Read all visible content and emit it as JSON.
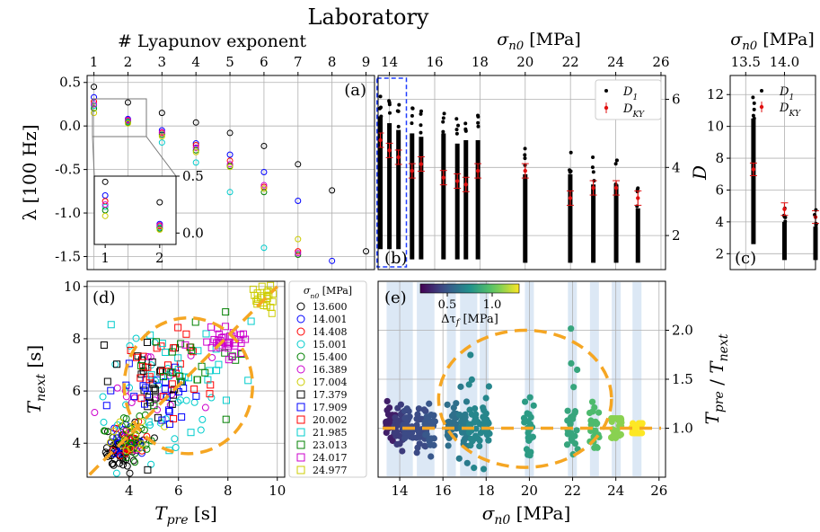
{
  "figure": {
    "title": "Laboratory"
  },
  "chart_data": [
    {
      "id": "a",
      "type": "scatter",
      "panel_label": "(a)",
      "top_axis_label": "# Lyapunov exponent",
      "xlabel": "",
      "ylabel": "λ [100 Hz]",
      "xlim": [
        0.8,
        9.25
      ],
      "ylim": [
        -1.65,
        0.58
      ],
      "xticks": [
        "1",
        "2",
        "3",
        "4",
        "5",
        "6",
        "7",
        "8",
        "9"
      ],
      "yticks": [
        "0.5",
        "0.0",
        "-0.5",
        "-1.0",
        "-1.5"
      ],
      "series": [
        {
          "color": "#000000",
          "x": [
            1,
            2,
            3,
            4,
            5,
            6,
            7,
            8,
            9
          ],
          "y": [
            0.45,
            0.27,
            0.15,
            0.04,
            -0.08,
            -0.23,
            -0.44,
            -0.74,
            -1.44
          ]
        },
        {
          "color": "#0000ff",
          "x": [
            1,
            2,
            3,
            4,
            5,
            6,
            7,
            8
          ],
          "y": [
            0.33,
            0.08,
            -0.05,
            -0.2,
            -0.33,
            -0.53,
            -0.86,
            -1.55
          ]
        },
        {
          "color": "#ff0000",
          "x": [
            1,
            2,
            3,
            4,
            5,
            6,
            7
          ],
          "y": [
            0.28,
            0.06,
            -0.08,
            -0.22,
            -0.4,
            -0.7,
            -1.44
          ]
        },
        {
          "color": "#00cccc",
          "x": [
            1,
            2,
            3,
            4,
            5,
            6
          ],
          "y": [
            0.23,
            0.05,
            -0.19,
            -0.42,
            -0.76,
            -1.4
          ]
        },
        {
          "color": "#008000",
          "x": [
            1,
            2,
            3,
            4,
            5,
            6,
            7
          ],
          "y": [
            0.2,
            0.04,
            -0.1,
            -0.28,
            -0.46,
            -0.76,
            -1.48
          ]
        },
        {
          "color": "#cc00cc",
          "x": [
            1,
            2,
            3,
            4,
            5,
            6,
            7
          ],
          "y": [
            0.25,
            0.07,
            -0.07,
            -0.25,
            -0.44,
            -0.68,
            -1.46
          ]
        },
        {
          "color": "#cccc00",
          "x": [
            1,
            2,
            3,
            4,
            5,
            6,
            7
          ],
          "y": [
            0.15,
            0.03,
            -0.12,
            -0.3,
            -0.47,
            -0.72,
            -1.3
          ]
        }
      ],
      "inset": {
        "xlim": [
          0.8,
          2.3
        ],
        "ylim": [
          -0.1,
          0.5
        ],
        "xticks": [
          "1",
          "2"
        ],
        "yticks": [
          "0.5",
          "0.0"
        ]
      }
    },
    {
      "id": "b",
      "type": "scatter",
      "panel_label": "(b)",
      "top_axis_label": "σn0 [MPa]",
      "ylabel": "D",
      "xlim": [
        13.5,
        26.2
      ],
      "ylim": [
        1.0,
        6.7
      ],
      "xticks": [
        "14",
        "16",
        "18",
        "20",
        "22",
        "24",
        "26"
      ],
      "yticks": [
        "2",
        "4",
        "6"
      ],
      "legend": [
        "D1",
        "DKY"
      ],
      "columns_x": [
        13.6,
        14.0,
        14.4,
        15.0,
        15.4,
        16.39,
        17.0,
        17.38,
        17.91,
        20.0,
        21.99,
        23.01,
        24.02,
        24.98
      ],
      "d1_range": [
        [
          1.6,
          6.3
        ],
        [
          1.6,
          6.1
        ],
        [
          1.6,
          5.9
        ],
        [
          1.3,
          5.8
        ],
        [
          1.3,
          5.7
        ],
        [
          1.3,
          5.8
        ],
        [
          1.3,
          5.5
        ],
        [
          1.3,
          5.6
        ],
        [
          1.3,
          5.6
        ],
        [
          1.2,
          4.6
        ],
        [
          1.2,
          4.6
        ],
        [
          1.2,
          4.3
        ],
        [
          1.2,
          4.3
        ],
        [
          1.2,
          3.6
        ]
      ],
      "dky": [
        4.8,
        4.5,
        4.3,
        3.9,
        4.1,
        3.7,
        3.6,
        3.5,
        3.9,
        3.9,
        3.1,
        3.4,
        3.4,
        3.1
      ],
      "highlight": {
        "x": [
          13.45,
          14.75
        ]
      }
    },
    {
      "id": "c",
      "type": "scatter",
      "panel_label": "(c)",
      "top_axis_label": "σn0 [MPa]",
      "xlim": [
        13.3,
        14.4
      ],
      "ylim": [
        1.0,
        13.2
      ],
      "xticks": [
        "13.5",
        "14.0"
      ],
      "yticks": [
        "2",
        "4",
        "6",
        "8",
        "10",
        "12"
      ],
      "legend": [
        "D1",
        "DKY"
      ],
      "columns_x": [
        13.6,
        14.0,
        14.4
      ],
      "d1_range": [
        [
          2.6,
          12
        ],
        [
          1.6,
          5.5
        ],
        [
          1.6,
          5.2
        ]
      ],
      "dky": [
        7.3,
        4.8,
        4.3
      ]
    },
    {
      "id": "d",
      "type": "scatter",
      "panel_label": "(d)",
      "xlabel": "T_pre [s]",
      "ylabel": "T_next [s]",
      "xlim": [
        2.3,
        10.3
      ],
      "ylim": [
        2.7,
        10.2
      ],
      "xticks": [
        "4",
        "6",
        "8",
        "10"
      ],
      "yticks": [
        "4",
        "6",
        "8",
        "10"
      ],
      "legend_title": "σn0 [MPa]",
      "legend": [
        "13.600",
        "14.001",
        "14.408",
        "15.001",
        "15.400",
        "16.389",
        "17.004",
        "17.379",
        "17.909",
        "20.002",
        "21.985",
        "23.013",
        "24.017",
        "24.977"
      ],
      "legend_colors": [
        "#000000",
        "#0000ff",
        "#ff0000",
        "#00cccc",
        "#008000",
        "#cc00cc",
        "#cccc00",
        "#000000",
        "#0000ff",
        "#ff0000",
        "#00cccc",
        "#008000",
        "#cc00cc",
        "#cccc00"
      ],
      "clusters": [
        {
          "series": 0,
          "cx": 3.7,
          "cy": 3.7,
          "sx": 0.4,
          "sy": 0.45,
          "n": 55
        },
        {
          "series": 1,
          "cx": 3.8,
          "cy": 3.9,
          "sx": 0.35,
          "sy": 0.35,
          "n": 25
        },
        {
          "series": 2,
          "cx": 4.0,
          "cy": 4.1,
          "sx": 0.4,
          "sy": 0.4,
          "n": 25
        },
        {
          "series": 3,
          "cx": 5.0,
          "cy": 6.0,
          "sx": 1.3,
          "sy": 1.4,
          "n": 30
        },
        {
          "series": 4,
          "cx": 4.1,
          "cy": 4.3,
          "sx": 0.45,
          "sy": 0.45,
          "n": 30
        },
        {
          "series": 5,
          "cx": 5.4,
          "cy": 5.9,
          "sx": 0.8,
          "sy": 0.8,
          "n": 20
        },
        {
          "series": 6,
          "cx": 4.2,
          "cy": 4.3,
          "sx": 0.4,
          "sy": 0.4,
          "n": 15
        },
        {
          "series": 7,
          "cx": 4.8,
          "cy": 6.4,
          "sx": 0.8,
          "sy": 0.8,
          "n": 28
        },
        {
          "series": 8,
          "cx": 5.2,
          "cy": 6.2,
          "sx": 0.8,
          "sy": 0.7,
          "n": 24
        },
        {
          "series": 9,
          "cx": 5.5,
          "cy": 6.7,
          "sx": 0.9,
          "sy": 0.9,
          "n": 26
        },
        {
          "series": 10,
          "cx": 6.5,
          "cy": 7.0,
          "sx": 1.4,
          "sy": 1.5,
          "n": 24
        },
        {
          "series": 11,
          "cx": 6.3,
          "cy": 7.3,
          "sx": 1.0,
          "sy": 1.0,
          "n": 22
        },
        {
          "series": 12,
          "cx": 7.9,
          "cy": 7.9,
          "sx": 0.4,
          "sy": 0.4,
          "n": 35
        },
        {
          "series": 13,
          "cx": 9.4,
          "cy": 9.5,
          "sx": 0.4,
          "sy": 0.3,
          "n": 22
        }
      ],
      "guides": {
        "circle": {
          "cx": 6.4,
          "cy": 6.2,
          "r": 2.6
        },
        "line": [
          [
            2.4,
            2.8
          ],
          [
            10.0,
            10.0
          ]
        ]
      }
    },
    {
      "id": "e",
      "type": "scatter",
      "panel_label": "(e)",
      "xlabel": "σn0 [MPa]",
      "ylabel": "T_pre / T_next",
      "xlim": [
        13.0,
        26.3
      ],
      "ylim": [
        0.5,
        2.5
      ],
      "xticks": [
        "14",
        "16",
        "18",
        "20",
        "22",
        "24",
        "26"
      ],
      "yticks": [
        "1.0",
        "1.5",
        "2.0"
      ],
      "colorbar": {
        "label": "Δτf [MPa]",
        "ticks": [
          "0.5",
          "1.0"
        ],
        "range": [
          0.2,
          1.3
        ]
      },
      "columns_x": [
        13.6,
        14.0,
        14.4,
        15.0,
        15.4,
        16.39,
        17.0,
        17.38,
        17.91,
        20.0,
        21.99,
        23.01,
        24.02,
        24.98
      ],
      "column_spread": [
        [
          0.65,
          1.3
        ],
        [
          0.7,
          1.25
        ],
        [
          0.75,
          1.2
        ],
        [
          0.75,
          1.2
        ],
        [
          0.7,
          1.25
        ],
        [
          0.55,
          1.4
        ],
        [
          0.6,
          1.55
        ],
        [
          0.55,
          1.9
        ],
        [
          0.55,
          1.5
        ],
        [
          0.6,
          1.4
        ],
        [
          0.6,
          2.45
        ],
        [
          0.8,
          1.3
        ],
        [
          0.9,
          1.1
        ],
        [
          0.95,
          1.05
        ]
      ],
      "column_color_value": [
        0.3,
        0.4,
        0.45,
        0.45,
        0.5,
        0.6,
        0.65,
        0.7,
        0.7,
        0.8,
        0.85,
        0.95,
        1.1,
        1.3
      ],
      "guides": {
        "circle": {
          "cx": 19.8,
          "cy": 1.3,
          "rx": 4.0,
          "ry": 0.7
        },
        "line_y": 1.0
      }
    }
  ]
}
